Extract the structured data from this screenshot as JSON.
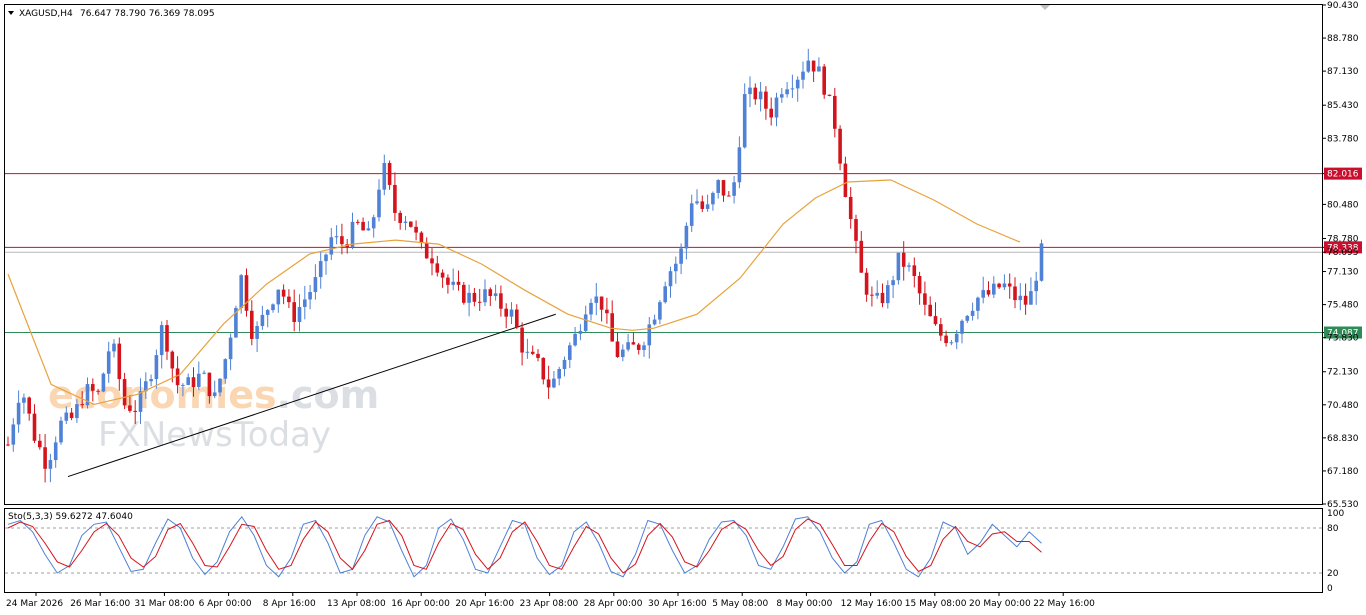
{
  "header": {
    "symbol": "XAGUSD,H4",
    "ohlc": "76.647 78.790 76.369 78.095"
  },
  "watermark": {
    "line1_part1": "econo",
    "line1_part2": "mies",
    "line1_part3": ".com",
    "line2": "FXNewsToday"
  },
  "colors": {
    "up": "#4f81d6",
    "down": "#d4141c",
    "ma": "#e8a23c",
    "resistance": "#c8102e",
    "support": "#2e8b57",
    "trendline": "#000000",
    "stoch_k": "#4f81d6",
    "stoch_d": "#d4141c"
  },
  "chart_data": [
    {
      "type": "candlestick",
      "symbol": "XAGUSD",
      "timeframe": "H4",
      "ylim": [
        65.53,
        90.43
      ],
      "y_ticks": [
        "90.430",
        "88.780",
        "87.130",
        "85.430",
        "83.780",
        "82.016",
        "80.480",
        "78.780",
        "78.338",
        "78.095",
        "77.130",
        "75.480",
        "74.087",
        "73.830",
        "72.130",
        "70.480",
        "68.830",
        "67.180",
        "65.530"
      ],
      "x_ticks": [
        "24 Mar 2026",
        "26 Mar 16:00",
        "31 Mar 08:00",
        "6 Apr 00:00",
        "8 Apr 16:00",
        "13 Apr 08:00",
        "16 Apr 00:00",
        "20 Apr 16:00",
        "23 Apr 08:00",
        "28 Apr 00:00",
        "30 Apr 16:00",
        "5 May 08:00",
        "8 May 00:00",
        "12 May 16:00",
        "15 May 08:00",
        "20 May 00:00",
        "22 May 16:00"
      ],
      "levels": {
        "resistance_1": "82.016",
        "resistance_2": "78.338",
        "current": "78.095",
        "support": "74.087"
      },
      "trendline": [
        [
          0,
          66.9
        ],
        [
          194,
          75.0
        ]
      ],
      "close_path": [
        [
          0,
          68.5
        ],
        [
          6,
          71.5
        ],
        [
          12,
          69.0
        ],
        [
          18,
          67.5
        ],
        [
          24,
          69.5
        ],
        [
          30,
          69.8
        ],
        [
          36,
          71.2
        ],
        [
          42,
          71.0
        ],
        [
          48,
          73.8
        ],
        [
          54,
          70.5
        ],
        [
          60,
          70.3
        ],
        [
          66,
          72.0
        ],
        [
          72,
          74.5
        ],
        [
          78,
          71.5
        ],
        [
          84,
          71.5
        ],
        [
          90,
          72.0
        ],
        [
          96,
          70.8
        ],
        [
          102,
          73.2
        ],
        [
          108,
          77.0
        ],
        [
          114,
          73.8
        ],
        [
          120,
          75.2
        ],
        [
          126,
          76.5
        ],
        [
          132,
          74.8
        ],
        [
          138,
          75.8
        ],
        [
          144,
          76.8
        ],
        [
          150,
          78.8
        ],
        [
          156,
          78.5
        ],
        [
          162,
          79.5
        ],
        [
          168,
          78.8
        ],
        [
          174,
          82.5
        ],
        [
          180,
          80.0
        ],
        [
          186,
          79.8
        ],
        [
          192,
          78.2
        ],
        [
          198,
          77.8
        ],
        [
          204,
          76.5
        ],
        [
          210,
          76.0
        ],
        [
          216,
          75.8
        ],
        [
          222,
          76.0
        ],
        [
          228,
          75.5
        ],
        [
          234,
          75.0
        ],
        [
          240,
          73.0
        ],
        [
          246,
          72.5
        ],
        [
          252,
          71.3
        ],
        [
          258,
          72.8
        ],
        [
          264,
          74.0
        ],
        [
          270,
          76.0
        ],
        [
          276,
          75.5
        ],
        [
          282,
          73.0
        ],
        [
          288,
          73.2
        ],
        [
          294,
          73.5
        ],
        [
          300,
          75.0
        ],
        [
          306,
          77.0
        ],
        [
          312,
          77.8
        ],
        [
          318,
          81.0
        ],
        [
          324,
          80.0
        ],
        [
          330,
          81.5
        ],
        [
          336,
          80.5
        ],
        [
          342,
          85.8
        ],
        [
          348,
          86.0
        ],
        [
          354,
          85.0
        ],
        [
          360,
          86.5
        ],
        [
          366,
          86.8
        ],
        [
          372,
          87.8
        ],
        [
          378,
          86.8
        ],
        [
          384,
          84.5
        ],
        [
          390,
          80.5
        ],
        [
          396,
          77.0
        ],
        [
          402,
          75.5
        ],
        [
          408,
          76.0
        ],
        [
          414,
          77.8
        ],
        [
          420,
          77.0
        ],
        [
          426,
          75.2
        ],
        [
          432,
          74.0
        ],
        [
          438,
          73.8
        ],
        [
          444,
          75.0
        ],
        [
          450,
          75.8
        ],
        [
          456,
          76.0
        ],
        [
          462,
          76.5
        ],
        [
          468,
          75.8
        ],
        [
          474,
          75.5
        ],
        [
          480,
          78.1
        ]
      ],
      "ma_path": [
        [
          0,
          77.0
        ],
        [
          20,
          71.5
        ],
        [
          40,
          70.5
        ],
        [
          60,
          71.0
        ],
        [
          80,
          72.0
        ],
        [
          100,
          74.5
        ],
        [
          120,
          76.5
        ],
        [
          140,
          78.0
        ],
        [
          160,
          78.5
        ],
        [
          180,
          78.7
        ],
        [
          200,
          78.5
        ],
        [
          220,
          77.5
        ],
        [
          240,
          76.2
        ],
        [
          260,
          75.0
        ],
        [
          280,
          74.3
        ],
        [
          290,
          74.2
        ],
        [
          300,
          74.3
        ],
        [
          320,
          75.0
        ],
        [
          340,
          76.8
        ],
        [
          360,
          79.5
        ],
        [
          375,
          80.8
        ],
        [
          390,
          81.6
        ],
        [
          410,
          81.7
        ],
        [
          430,
          80.7
        ],
        [
          450,
          79.5
        ],
        [
          470,
          78.6
        ]
      ]
    },
    {
      "type": "line",
      "title": "Sto(5,3,3) 59.6272 47.6040",
      "ylim": [
        0,
        100
      ],
      "y_ticks": [
        "100",
        "80",
        "20",
        "0"
      ],
      "levels": [
        80,
        20
      ],
      "k_values": [
        85,
        90,
        75,
        45,
        20,
        30,
        70,
        85,
        88,
        55,
        22,
        25,
        60,
        92,
        80,
        40,
        18,
        35,
        75,
        95,
        70,
        30,
        15,
        40,
        85,
        90,
        60,
        20,
        25,
        70,
        95,
        88,
        50,
        15,
        30,
        80,
        92,
        65,
        25,
        20,
        55,
        90,
        85,
        40,
        18,
        30,
        75,
        88,
        60,
        22,
        15,
        45,
        90,
        85,
        50,
        20,
        30,
        65,
        88,
        90,
        70,
        30,
        25,
        55,
        92,
        95,
        75,
        40,
        20,
        35,
        85,
        90,
        60,
        25,
        15,
        40,
        88,
        80,
        45,
        60,
        85,
        70,
        55,
        75,
        59.6
      ],
      "d_values": [
        80,
        88,
        82,
        60,
        35,
        28,
        50,
        75,
        86,
        70,
        40,
        28,
        42,
        78,
        86,
        60,
        30,
        28,
        55,
        85,
        82,
        50,
        25,
        30,
        65,
        88,
        75,
        40,
        25,
        50,
        85,
        90,
        70,
        30,
        25,
        60,
        86,
        78,
        45,
        25,
        40,
        75,
        88,
        62,
        30,
        25,
        55,
        82,
        72,
        40,
        20,
        32,
        70,
        86,
        68,
        35,
        28,
        50,
        78,
        88,
        78,
        50,
        30,
        42,
        78,
        92,
        85,
        58,
        30,
        30,
        62,
        86,
        75,
        42,
        22,
        30,
        65,
        82,
        62,
        55,
        72,
        75,
        62,
        62,
        47.6
      ]
    }
  ]
}
